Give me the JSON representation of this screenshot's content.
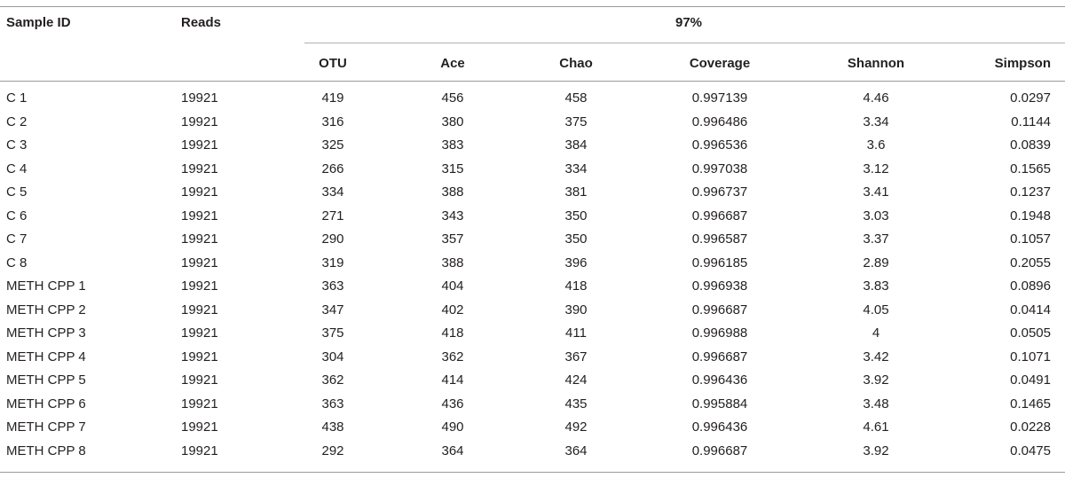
{
  "table": {
    "headers": {
      "sample_id": "Sample ID",
      "reads": "Reads",
      "group": "97%",
      "otu": "OTU",
      "ace": "Ace",
      "chao": "Chao",
      "coverage": "Coverage",
      "shannon": "Shannon",
      "simpson": "Simpson"
    },
    "rows": [
      {
        "id": "C 1",
        "reads": "19921",
        "otu": "419",
        "ace": "456",
        "chao": "458",
        "coverage": "0.997139",
        "shannon": "4.46",
        "simpson": "0.0297"
      },
      {
        "id": "C 2",
        "reads": "19921",
        "otu": "316",
        "ace": "380",
        "chao": "375",
        "coverage": "0.996486",
        "shannon": "3.34",
        "simpson": "0.1144"
      },
      {
        "id": "C 3",
        "reads": "19921",
        "otu": "325",
        "ace": "383",
        "chao": "384",
        "coverage": "0.996536",
        "shannon": "3.6",
        "simpson": "0.0839"
      },
      {
        "id": "C 4",
        "reads": "19921",
        "otu": "266",
        "ace": "315",
        "chao": "334",
        "coverage": "0.997038",
        "shannon": "3.12",
        "simpson": "0.1565"
      },
      {
        "id": "C 5",
        "reads": "19921",
        "otu": "334",
        "ace": "388",
        "chao": "381",
        "coverage": "0.996737",
        "shannon": "3.41",
        "simpson": "0.1237"
      },
      {
        "id": "C 6",
        "reads": "19921",
        "otu": "271",
        "ace": "343",
        "chao": "350",
        "coverage": "0.996687",
        "shannon": "3.03",
        "simpson": "0.1948"
      },
      {
        "id": "C 7",
        "reads": "19921",
        "otu": "290",
        "ace": "357",
        "chao": "350",
        "coverage": "0.996587",
        "shannon": "3.37",
        "simpson": "0.1057"
      },
      {
        "id": "C 8",
        "reads": "19921",
        "otu": "319",
        "ace": "388",
        "chao": "396",
        "coverage": "0.996185",
        "shannon": "2.89",
        "simpson": "0.2055"
      },
      {
        "id": "METH CPP 1",
        "reads": "19921",
        "otu": "363",
        "ace": "404",
        "chao": "418",
        "coverage": "0.996938",
        "shannon": "3.83",
        "simpson": "0.0896"
      },
      {
        "id": "METH CPP 2",
        "reads": "19921",
        "otu": "347",
        "ace": "402",
        "chao": "390",
        "coverage": "0.996687",
        "shannon": "4.05",
        "simpson": "0.0414"
      },
      {
        "id": "METH CPP 3",
        "reads": "19921",
        "otu": "375",
        "ace": "418",
        "chao": "411",
        "coverage": "0.996988",
        "shannon": "4",
        "simpson": "0.0505"
      },
      {
        "id": "METH CPP 4",
        "reads": "19921",
        "otu": "304",
        "ace": "362",
        "chao": "367",
        "coverage": "0.996687",
        "shannon": "3.42",
        "simpson": "0.1071"
      },
      {
        "id": "METH CPP 5",
        "reads": "19921",
        "otu": "362",
        "ace": "414",
        "chao": "424",
        "coverage": "0.996436",
        "shannon": "3.92",
        "simpson": "0.0491"
      },
      {
        "id": "METH CPP 6",
        "reads": "19921",
        "otu": "363",
        "ace": "436",
        "chao": "435",
        "coverage": "0.995884",
        "shannon": "3.48",
        "simpson": "0.1465"
      },
      {
        "id": "METH CPP 7",
        "reads": "19921",
        "otu": "438",
        "ace": "490",
        "chao": "492",
        "coverage": "0.996436",
        "shannon": "4.61",
        "simpson": "0.0228"
      },
      {
        "id": "METH CPP 8",
        "reads": "19921",
        "otu": "292",
        "ace": "364",
        "chao": "364",
        "coverage": "0.996687",
        "shannon": "3.92",
        "simpson": "0.0475"
      }
    ]
  }
}
